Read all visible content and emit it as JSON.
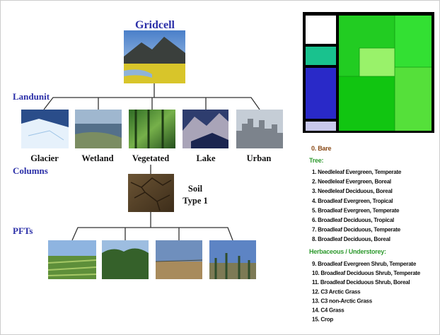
{
  "gridcell": {
    "label": "Gridcell"
  },
  "levels": [
    "Landunit",
    "Columns",
    "PFTs"
  ],
  "landunits": [
    "Glacier",
    "Wetland",
    "Vegetated",
    "Lake",
    "Urban"
  ],
  "column": {
    "lines": [
      "Soil",
      "Type 1"
    ]
  },
  "legend": {
    "bare": "0. Bare",
    "tree_heading": "Tree:",
    "tree": [
      "1. Needleleaf Evergreen, Temperate",
      "2. Needleleaf Evergreen, Boreal",
      "3. Needleleaf Deciduous, Boreal",
      "4. Broadleaf Evergreen, Tropical",
      "5. Broadleaf Evergreen, Temperate",
      "6. Broadleaf Deciduous, Tropical",
      "7. Broadleaf Deciduous, Temperate",
      "8. Broadleaf Deciduous, Boreal"
    ],
    "herb_heading": "Herbaceous / Understorey:",
    "herb": [
      "9. Broadleaf Evergreen Shrub, Temperate",
      "10. Broadleaf Deciduous Shrub, Temperate",
      "11. Broadleaf Deciduous Shrub, Boreal",
      "12. C3 Arctic Grass",
      "13. C3 non-Arctic Grass",
      "14. C4 Grass",
      "15. Crop"
    ]
  }
}
